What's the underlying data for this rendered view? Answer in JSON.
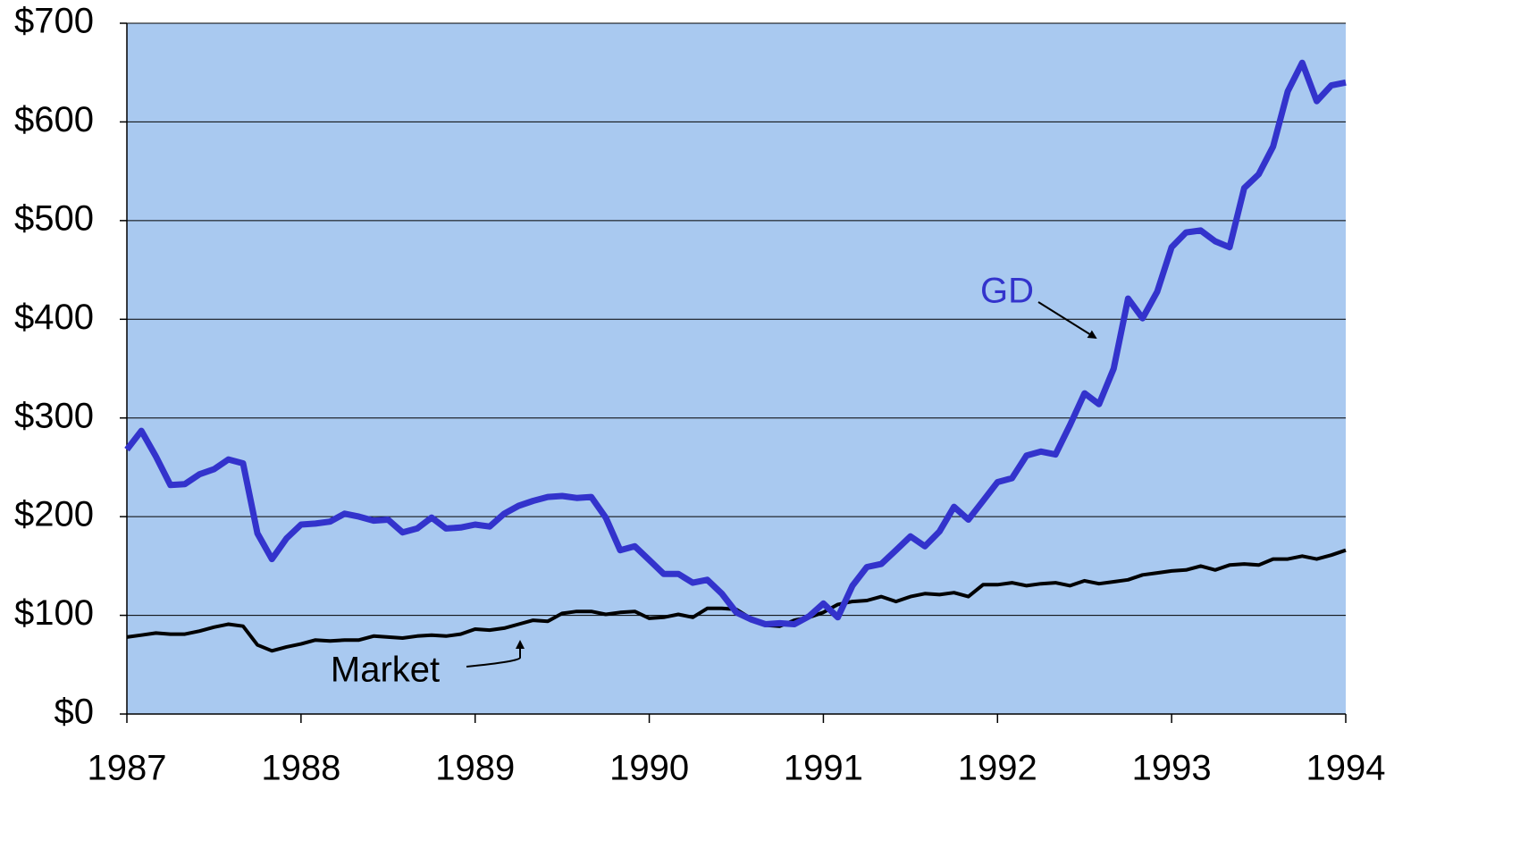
{
  "chart_data": {
    "type": "line",
    "x": [
      1987,
      1987.083,
      1987.167,
      1987.25,
      1987.333,
      1987.417,
      1987.5,
      1987.583,
      1987.667,
      1987.75,
      1987.833,
      1987.917,
      1988,
      1988.083,
      1988.167,
      1988.25,
      1988.333,
      1988.417,
      1988.5,
      1988.583,
      1988.667,
      1988.75,
      1988.833,
      1988.917,
      1989,
      1989.083,
      1989.167,
      1989.25,
      1989.333,
      1989.417,
      1989.5,
      1989.583,
      1989.667,
      1989.75,
      1989.833,
      1989.917,
      1990,
      1990.083,
      1990.167,
      1990.25,
      1990.333,
      1990.417,
      1990.5,
      1990.583,
      1990.667,
      1990.75,
      1990.833,
      1990.917,
      1991,
      1991.083,
      1991.167,
      1991.25,
      1991.333,
      1991.417,
      1991.5,
      1991.583,
      1991.667,
      1991.75,
      1991.833,
      1991.917,
      1992,
      1992.083,
      1992.167,
      1992.25,
      1992.333,
      1992.417,
      1992.5,
      1992.583,
      1992.667,
      1992.75,
      1992.833,
      1992.917,
      1993,
      1993.083,
      1993.167,
      1993.25,
      1993.333,
      1993.417,
      1993.5,
      1993.583,
      1993.667,
      1993.75,
      1993.833,
      1993.917,
      1994
    ],
    "series": [
      {
        "name": "GD",
        "color": "#3333cc",
        "values": [
          268,
          287,
          261,
          232,
          233,
          243,
          248,
          258,
          254,
          183,
          157,
          178,
          192,
          193,
          195,
          203,
          200,
          196,
          197,
          184,
          188,
          199,
          188,
          189,
          192,
          190,
          203,
          211,
          216,
          220,
          221,
          219,
          220,
          199,
          166,
          170,
          156,
          142,
          142,
          133,
          136,
          122,
          103,
          96,
          91,
          92,
          91,
          99,
          112,
          98,
          130,
          149,
          152,
          166,
          180,
          170,
          185,
          210,
          197,
          216,
          235,
          239,
          262,
          266,
          263,
          293,
          325,
          314,
          350,
          421,
          401,
          428,
          473,
          488,
          490,
          479,
          473,
          533,
          547,
          575,
          631,
          660,
          621,
          637,
          640
        ]
      },
      {
        "name": "Market",
        "color": "#000000",
        "values": [
          78,
          80,
          82,
          81,
          81,
          84,
          88,
          91,
          89,
          70,
          64,
          68,
          71,
          75,
          74,
          75,
          75,
          79,
          78,
          77,
          79,
          80,
          79,
          81,
          86,
          85,
          87,
          91,
          95,
          94,
          102,
          104,
          104,
          101,
          103,
          104,
          97,
          98,
          101,
          98,
          107,
          107,
          106,
          97,
          90,
          89,
          95,
          98,
          103,
          111,
          114,
          115,
          119,
          114,
          119,
          122,
          121,
          123,
          119,
          131,
          131,
          133,
          130,
          132,
          133,
          130,
          135,
          132,
          134,
          136,
          141,
          143,
          145,
          146,
          150,
          146,
          151,
          152,
          151,
          157,
          157,
          160,
          157,
          161,
          166
        ]
      }
    ],
    "annotations": [
      "GD",
      "Market"
    ],
    "xlim": [
      1987,
      1994
    ],
    "xticks": [
      1987,
      1988,
      1989,
      1990,
      1991,
      1992,
      1993,
      1994
    ],
    "ylim": [
      0,
      700
    ],
    "yticks": [
      {
        "value": 0,
        "label": "$0"
      },
      {
        "value": 100,
        "label": "$100"
      },
      {
        "value": 200,
        "label": "$200"
      },
      {
        "value": 300,
        "label": "$300"
      },
      {
        "value": 400,
        "label": "$400"
      },
      {
        "value": 500,
        "label": "$500"
      },
      {
        "value": 600,
        "label": "$600"
      },
      {
        "value": 700,
        "label": "$700"
      }
    ],
    "grid": true,
    "plot_background": "#a9c9f0"
  }
}
